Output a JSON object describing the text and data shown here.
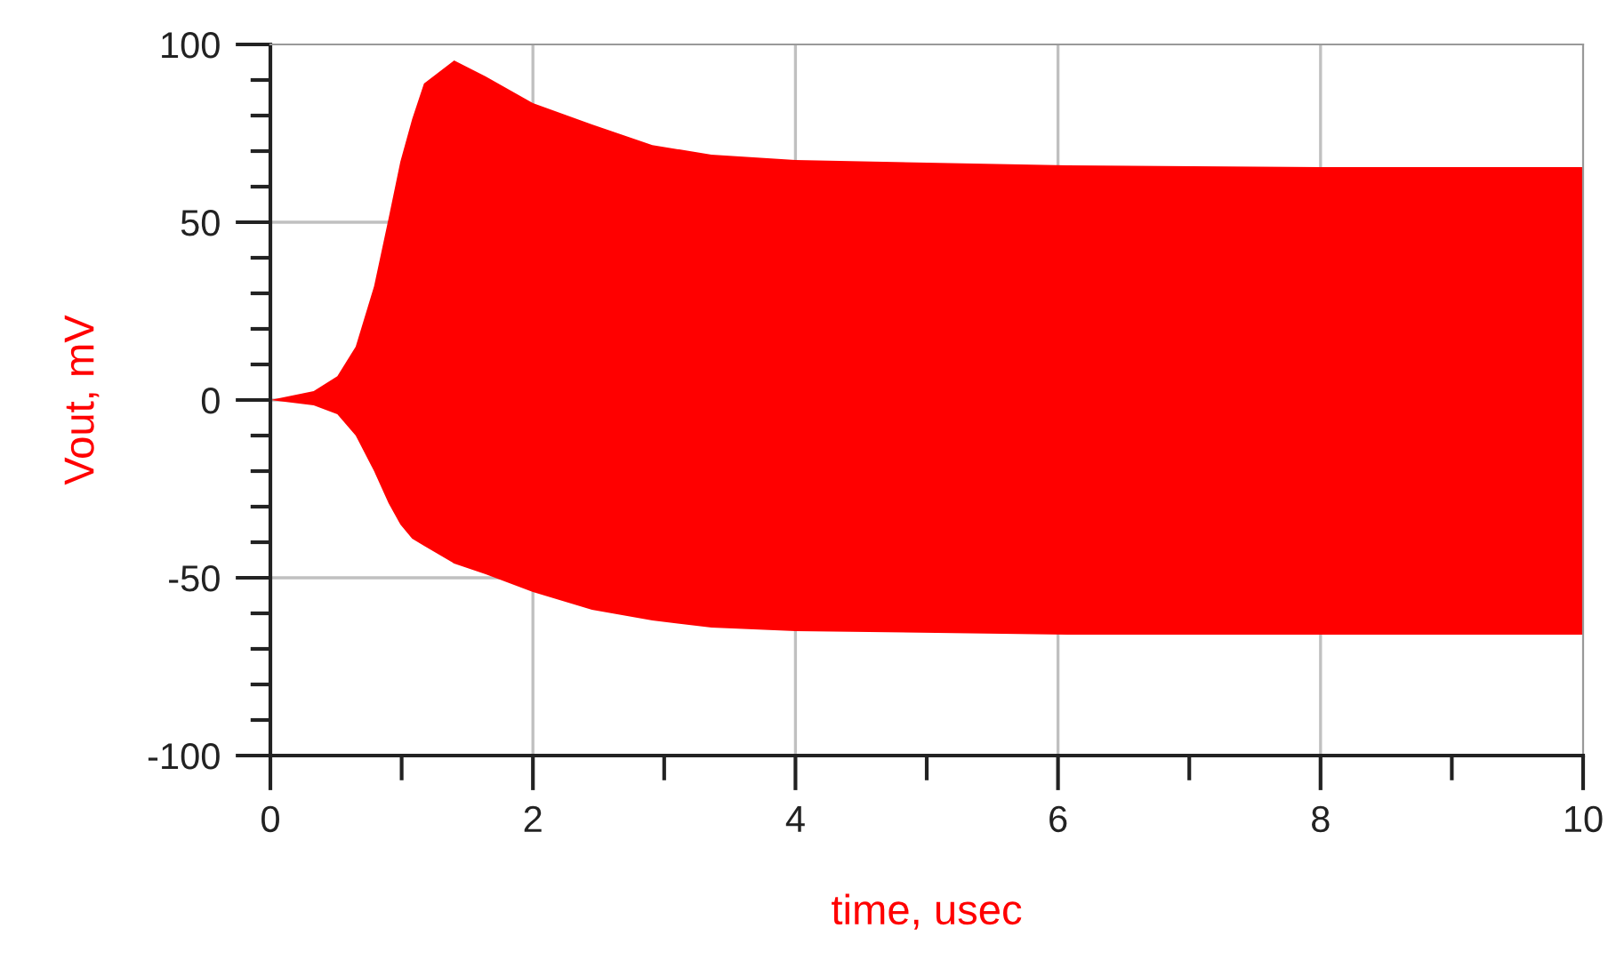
{
  "chart_data": {
    "type": "area",
    "xlabel": "time, usec",
    "ylabel": "Vout, mV",
    "x": [
      0,
      0.33,
      0.51,
      0.65,
      0.79,
      0.9,
      0.99,
      1.08,
      1.17,
      1.4,
      1.64,
      2.0,
      2.45,
      2.91,
      3.36,
      4.0,
      6.07,
      8,
      10
    ],
    "series": [
      {
        "color": "#ff0000",
        "values": [
          0,
          2.5,
          6.7,
          15,
          32,
          51,
          67,
          79,
          89,
          95.5,
          91,
          83.5,
          77.5,
          71.7,
          69,
          67.5,
          66,
          65.5,
          65.5
        ]
      },
      {
        "color": "#ff0000",
        "values": [
          0,
          -1.5,
          -4,
          -10,
          -20,
          -29,
          -35,
          -39,
          -41,
          -46,
          -49,
          -54,
          -59,
          -62,
          -64,
          -65,
          -66,
          -66,
          -66
        ]
      }
    ],
    "xlim": [
      0,
      10
    ],
    "ylim": [
      -100,
      100
    ],
    "xticks": [
      0,
      {
        "value": 1,
        "label": null
      },
      2,
      {
        "value": 3,
        "label": null
      },
      4,
      {
        "value": 5,
        "label": null
      },
      6,
      {
        "value": 7,
        "label": null
      },
      8,
      {
        "value": 9,
        "label": null
      },
      10
    ],
    "yticks": [
      -100,
      {
        "value": -90,
        "label": null
      },
      {
        "value": -80,
        "label": null
      },
      {
        "value": -70,
        "label": null
      },
      {
        "value": -60,
        "label": null
      },
      -50,
      {
        "value": -40,
        "label": null
      },
      {
        "value": -30,
        "label": null
      },
      {
        "value": -20,
        "label": null
      },
      {
        "value": -10,
        "label": null
      },
      0,
      {
        "value": 10,
        "label": null
      },
      {
        "value": 20,
        "label": null
      },
      {
        "value": 30,
        "label": null
      },
      {
        "value": 40,
        "label": null
      },
      50,
      {
        "value": 60,
        "label": null
      },
      {
        "value": 70,
        "label": null
      },
      {
        "value": 80,
        "label": null
      },
      {
        "value": 90,
        "label": null
      },
      100
    ],
    "grid": true
  }
}
